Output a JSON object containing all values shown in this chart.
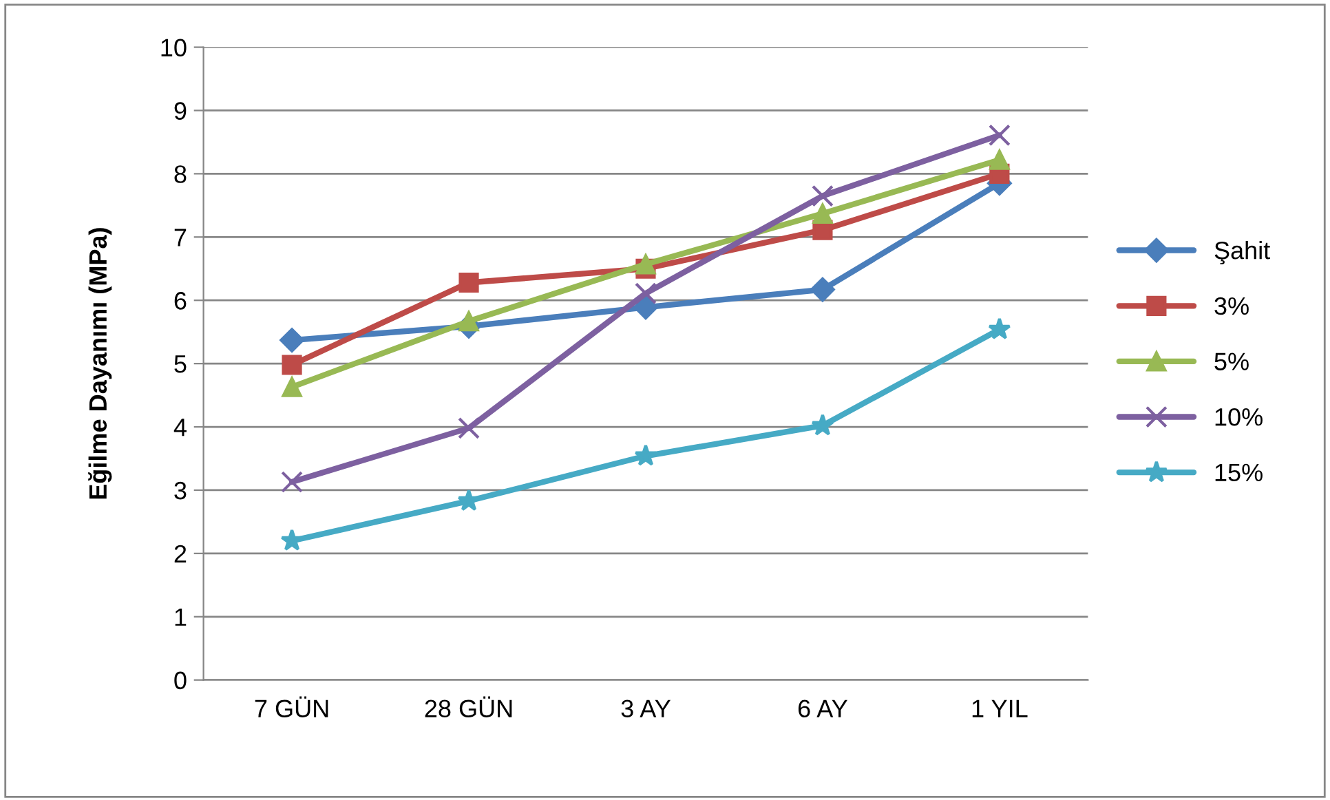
{
  "chart_data": {
    "type": "line",
    "ylabel": "Eğilme Dayanımı (MPa)",
    "categories": [
      "7 GÜN",
      "28 GÜN",
      "3 AY",
      "6 AY",
      "1 YIL"
    ],
    "series": [
      {
        "name": "Şahit",
        "color": "#4a7ebb",
        "marker": "diamond",
        "values": [
          5.37,
          5.59,
          5.89,
          6.17,
          7.85
        ]
      },
      {
        "name": "3%",
        "color": "#be4b48",
        "marker": "square",
        "values": [
          4.98,
          6.28,
          6.5,
          7.11,
          8.0
        ]
      },
      {
        "name": "5%",
        "color": "#98b954",
        "marker": "triangle",
        "values": [
          4.63,
          5.67,
          6.57,
          7.37,
          8.22
        ]
      },
      {
        "name": "10%",
        "color": "#7d60a0",
        "marker": "cross",
        "values": [
          3.13,
          3.98,
          6.11,
          7.65,
          8.61
        ]
      },
      {
        "name": "15%",
        "color": "#46aac5",
        "marker": "star",
        "values": [
          2.2,
          2.83,
          3.54,
          4.02,
          5.54
        ]
      }
    ],
    "ylim": [
      0,
      10
    ],
    "yticks": [
      0,
      1,
      2,
      3,
      4,
      5,
      6,
      7,
      8,
      9,
      10
    ],
    "grid": "y",
    "legend": "right"
  }
}
